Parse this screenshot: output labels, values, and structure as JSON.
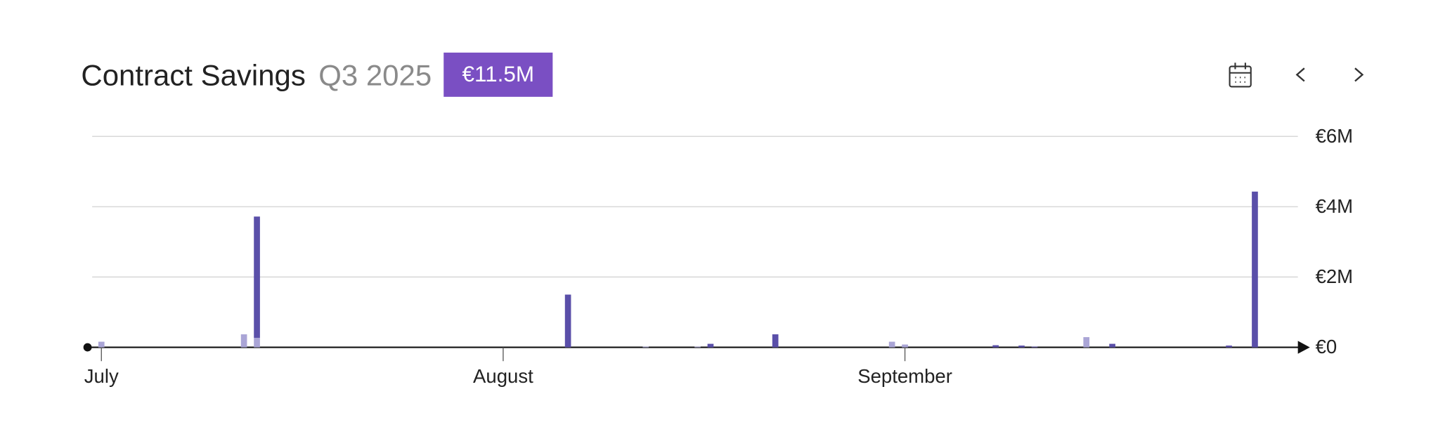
{
  "chart_data": {
    "type": "bar",
    "title": "Contract Savings",
    "subtitle": "Q3 2025",
    "badge": "€11.5M",
    "stacked": true,
    "grid": true,
    "categories": [
      "July",
      null,
      null,
      null,
      null,
      null,
      null,
      null,
      null,
      null,
      null,
      null,
      null,
      null,
      null,
      null,
      null,
      null,
      null,
      null,
      null,
      null,
      null,
      null,
      null,
      null,
      null,
      null,
      null,
      null,
      null,
      "August",
      null,
      null,
      null,
      null,
      null,
      null,
      null,
      null,
      null,
      null,
      null,
      null,
      null,
      null,
      null,
      null,
      null,
      null,
      null,
      null,
      null,
      null,
      null,
      null,
      null,
      null,
      null,
      null,
      null,
      null,
      "September",
      null,
      null,
      null,
      null,
      null,
      null,
      null,
      null,
      null,
      null,
      null,
      null,
      null,
      null,
      null,
      null,
      null,
      null,
      null,
      null,
      null,
      null,
      null,
      null,
      null,
      null,
      null,
      null,
      null
    ],
    "series": [
      {
        "color": "#aaa5d6",
        "values": [
          160000,
          0,
          0,
          0,
          0,
          0,
          0,
          0,
          0,
          0,
          0,
          370000,
          270000,
          0,
          0,
          0,
          0,
          0,
          0,
          0,
          0,
          0,
          0,
          0,
          0,
          0,
          0,
          0,
          0,
          0,
          0,
          0,
          0,
          0,
          0,
          0,
          0,
          0,
          0,
          0,
          0,
          0,
          20000,
          0,
          0,
          0,
          20000,
          0,
          0,
          0,
          0,
          0,
          0,
          0,
          0,
          0,
          0,
          0,
          0,
          0,
          0,
          160000,
          80000,
          0,
          0,
          0,
          0,
          0,
          0,
          0,
          0,
          0,
          0,
          0,
          0,
          0,
          290000,
          0,
          0,
          0,
          0,
          0,
          0,
          0,
          0,
          0,
          0,
          0,
          0,
          0,
          0,
          0
        ]
      },
      {
        "color": "#5a4fa9",
        "values": [
          0,
          0,
          0,
          0,
          0,
          0,
          0,
          0,
          0,
          0,
          0,
          0,
          3450000,
          0,
          0,
          0,
          0,
          0,
          0,
          0,
          0,
          0,
          0,
          0,
          0,
          0,
          0,
          0,
          0,
          0,
          0,
          0,
          0,
          0,
          0,
          0,
          1500000,
          0,
          0,
          0,
          0,
          0,
          0,
          0,
          0,
          0,
          0,
          100000,
          0,
          0,
          0,
          0,
          370000,
          0,
          0,
          0,
          0,
          0,
          0,
          0,
          0,
          0,
          0,
          0,
          0,
          0,
          0,
          0,
          0,
          60000,
          0,
          50000,
          20000,
          0,
          0,
          0,
          0,
          0,
          100000,
          0,
          0,
          0,
          0,
          0,
          0,
          0,
          0,
          50000,
          0,
          4430000,
          0,
          0
        ]
      }
    ],
    "ylim": [
      0,
      6000000
    ],
    "yticks": [
      {
        "value": 0,
        "label": "€0"
      },
      {
        "value": 2000000,
        "label": "€2M"
      },
      {
        "value": 4000000,
        "label": "€4M"
      },
      {
        "value": 6000000,
        "label": "€6M"
      }
    ]
  }
}
